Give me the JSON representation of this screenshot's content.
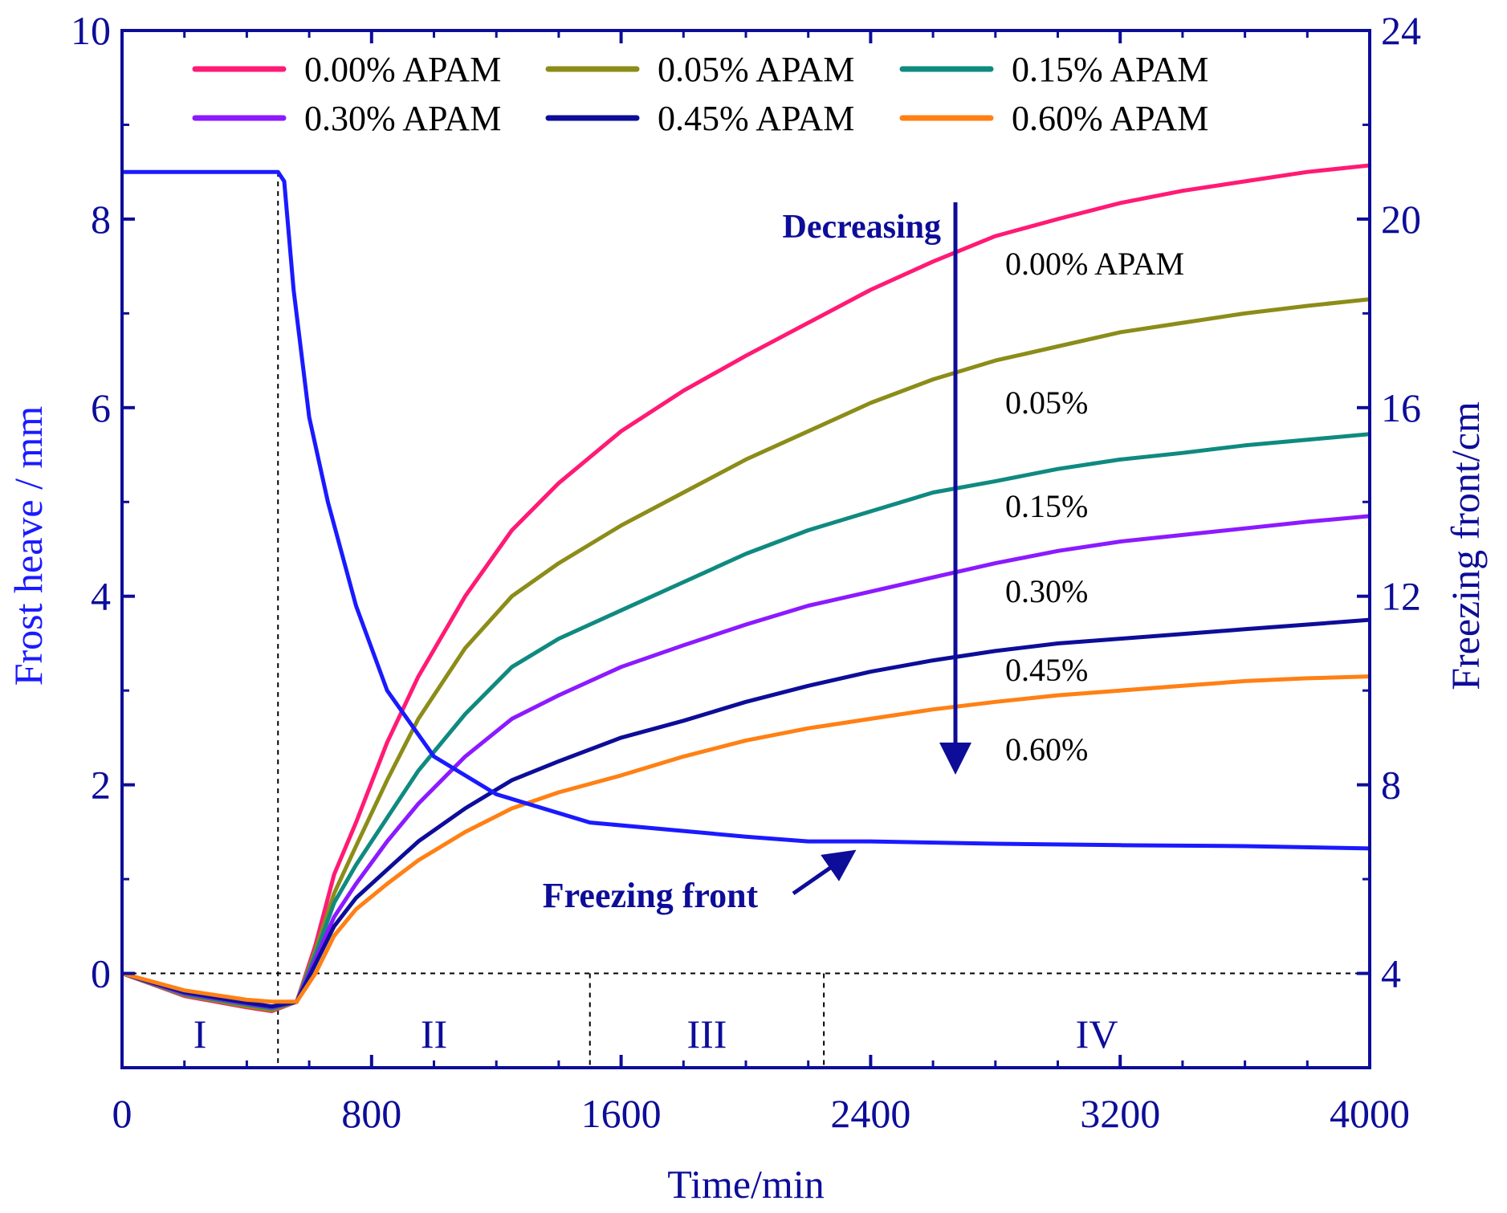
{
  "chart_data": {
    "type": "line",
    "xlabel": "Time/min",
    "ylabel": "Frost heave / mm",
    "y2label": "Freezing front/cm",
    "xlim": [
      0,
      4000
    ],
    "ylim": [
      -1,
      10
    ],
    "y2lim": [
      2,
      24
    ],
    "xticks": [
      0,
      800,
      1600,
      2400,
      3200,
      4000
    ],
    "yticks": [
      0,
      2,
      4,
      6,
      8,
      10
    ],
    "y2ticks": [
      4,
      8,
      12,
      16,
      20,
      24
    ],
    "legend_position": "top",
    "series": [
      {
        "name": "0.00% APAM",
        "color": "#ff1a75",
        "x": [
          0,
          200,
          400,
          480,
          560,
          620,
          680,
          750,
          850,
          950,
          1100,
          1250,
          1400,
          1600,
          1800,
          2000,
          2200,
          2400,
          2600,
          2800,
          3000,
          3200,
          3400,
          3600,
          3800,
          4000
        ],
        "y": [
          0,
          -0.24,
          -0.36,
          -0.4,
          -0.3,
          0.3,
          1.05,
          1.6,
          2.45,
          3.15,
          4.0,
          4.7,
          5.2,
          5.75,
          6.18,
          6.55,
          6.9,
          7.25,
          7.55,
          7.82,
          8.0,
          8.17,
          8.3,
          8.4,
          8.5,
          8.57
        ]
      },
      {
        "name": "0.05% APAM",
        "color": "#8c8c19",
        "x": [
          0,
          200,
          400,
          480,
          560,
          620,
          680,
          750,
          850,
          950,
          1100,
          1250,
          1400,
          1600,
          1800,
          2000,
          2200,
          2400,
          2600,
          2800,
          3000,
          3200,
          3400,
          3600,
          3800,
          4000
        ],
        "y": [
          0,
          -0.23,
          -0.35,
          -0.39,
          -0.3,
          0.25,
          0.85,
          1.35,
          2.05,
          2.7,
          3.45,
          4.0,
          4.35,
          4.75,
          5.1,
          5.45,
          5.75,
          6.05,
          6.3,
          6.5,
          6.65,
          6.8,
          6.9,
          7.0,
          7.08,
          7.15
        ]
      },
      {
        "name": "0.15% APAM",
        "color": "#0f8a80",
        "x": [
          0,
          200,
          400,
          480,
          560,
          620,
          680,
          750,
          850,
          950,
          1100,
          1250,
          1400,
          1600,
          1800,
          2000,
          2200,
          2400,
          2600,
          2800,
          3000,
          3200,
          3400,
          3600,
          3800,
          4000
        ],
        "y": [
          0,
          -0.22,
          -0.33,
          -0.37,
          -0.3,
          0.2,
          0.75,
          1.15,
          1.65,
          2.15,
          2.75,
          3.25,
          3.55,
          3.85,
          4.15,
          4.45,
          4.7,
          4.9,
          5.1,
          5.22,
          5.35,
          5.45,
          5.52,
          5.6,
          5.66,
          5.72
        ]
      },
      {
        "name": "0.30% APAM",
        "color": "#8c1aff",
        "x": [
          0,
          200,
          400,
          480,
          560,
          620,
          680,
          750,
          850,
          950,
          1100,
          1250,
          1400,
          1600,
          1800,
          2000,
          2200,
          2400,
          2600,
          2800,
          3000,
          3200,
          3400,
          3600,
          3800,
          4000
        ],
        "y": [
          0,
          -0.21,
          -0.32,
          -0.36,
          -0.3,
          0.15,
          0.6,
          0.95,
          1.4,
          1.8,
          2.3,
          2.7,
          2.95,
          3.25,
          3.48,
          3.7,
          3.9,
          4.05,
          4.2,
          4.35,
          4.48,
          4.58,
          4.65,
          4.72,
          4.79,
          4.85
        ]
      },
      {
        "name": "0.45% APAM",
        "color": "#0d0d99",
        "x": [
          0,
          200,
          400,
          480,
          560,
          620,
          680,
          750,
          850,
          950,
          1100,
          1250,
          1400,
          1600,
          1800,
          2000,
          2200,
          2400,
          2600,
          2800,
          3000,
          3200,
          3400,
          3600,
          3800,
          4000
        ],
        "y": [
          0,
          -0.2,
          -0.31,
          -0.35,
          -0.3,
          0.1,
          0.5,
          0.8,
          1.1,
          1.4,
          1.75,
          2.05,
          2.25,
          2.5,
          2.68,
          2.88,
          3.05,
          3.2,
          3.32,
          3.42,
          3.5,
          3.55,
          3.6,
          3.65,
          3.7,
          3.75
        ]
      },
      {
        "name": "0.60% APAM",
        "color": "#ff8014",
        "x": [
          0,
          200,
          400,
          480,
          560,
          620,
          680,
          750,
          850,
          950,
          1100,
          1250,
          1400,
          1600,
          1800,
          2000,
          2200,
          2400,
          2600,
          2800,
          3000,
          3200,
          3400,
          3600,
          3800,
          4000
        ],
        "y": [
          0,
          -0.18,
          -0.28,
          -0.3,
          -0.3,
          0.0,
          0.4,
          0.68,
          0.95,
          1.2,
          1.5,
          1.75,
          1.92,
          2.1,
          2.3,
          2.47,
          2.6,
          2.7,
          2.8,
          2.88,
          2.95,
          3.0,
          3.05,
          3.1,
          3.13,
          3.15
        ]
      },
      {
        "name": "Freezing front",
        "color": "#1a1aff",
        "axis": "right",
        "x": [
          0,
          500,
          520,
          550,
          600,
          660,
          750,
          850,
          1000,
          1200,
          1500,
          2000,
          2200,
          2400,
          2800,
          3200,
          3600,
          4000
        ],
        "y": [
          21,
          21,
          20.8,
          18.5,
          15.8,
          14.0,
          11.8,
          10.0,
          8.6,
          7.8,
          7.2,
          6.9,
          6.8,
          6.8,
          6.75,
          6.72,
          6.7,
          6.65
        ]
      }
    ],
    "stage_boundaries_x": [
      500,
      1500,
      2250
    ],
    "stages": [
      "I",
      "II",
      "III",
      "IV"
    ],
    "annotations": {
      "decreasing": "Decreasing",
      "freezing_front": "Freezing front",
      "end_labels": [
        "0.00% APAM",
        "0.05%",
        "0.15%",
        "0.30%",
        "0.45%",
        "0.60%"
      ]
    }
  }
}
